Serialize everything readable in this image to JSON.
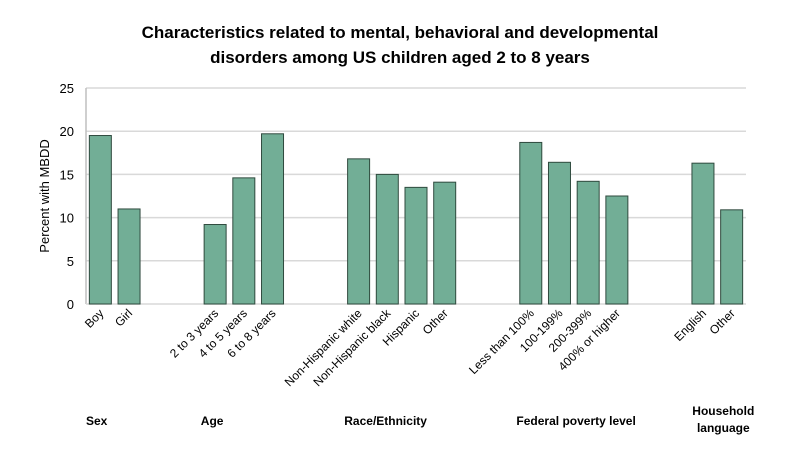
{
  "chart_data": {
    "type": "bar",
    "title": [
      "Characteristics related to mental, behavioral and developmental",
      "disorders among US children aged 2 to 8 years"
    ],
    "ylabel": "Percent with MBDD",
    "xlabel": "",
    "ylim": [
      0,
      25
    ],
    "yticks": [
      "0",
      "5",
      "10",
      "15",
      "20",
      "25"
    ],
    "grid": true,
    "bar_color": "#72ae96",
    "groups": [
      {
        "label": [
          "Sex"
        ],
        "categories": [
          "Boy",
          "Girl"
        ],
        "values": [
          19.5,
          11.0
        ]
      },
      {
        "label": [
          "Age"
        ],
        "categories": [
          "2 to 3 years",
          "4 to 5 years",
          "6 to 8 years"
        ],
        "values": [
          9.2,
          14.6,
          19.7
        ]
      },
      {
        "label": [
          "Race/Ethnicity"
        ],
        "categories": [
          "Non-Hispanic white",
          "Non-Hispanic black",
          "Hispanic",
          "Other"
        ],
        "values": [
          16.8,
          15.0,
          13.5,
          14.1
        ]
      },
      {
        "label": [
          "Federal poverty level"
        ],
        "categories": [
          "Less than 100%",
          "100-199%",
          "200-399%",
          "400% or higher"
        ],
        "values": [
          18.7,
          16.4,
          14.2,
          12.5
        ]
      },
      {
        "label": [
          "Household",
          "language"
        ],
        "categories": [
          "English",
          "Other"
        ],
        "values": [
          16.3,
          10.9
        ]
      }
    ]
  }
}
